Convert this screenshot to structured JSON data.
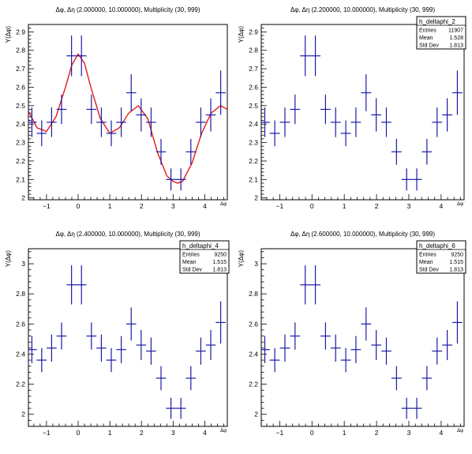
{
  "chart_data": [
    {
      "id": "p1",
      "type": "scatter",
      "title": "Δφ, Δη (2.000000, 10.000000), Multiplicity (30, 999)",
      "xlabel": "Δφ",
      "ylabel": "Y(Δφ)",
      "xlim": [
        -1.571,
        4.712
      ],
      "ylim": [
        1.99,
        2.94
      ],
      "xticks": [
        -1,
        0,
        1,
        2,
        3,
        4
      ],
      "yticks": [
        2,
        2.1,
        2.2,
        2.3,
        2.4,
        2.5,
        2.6,
        2.7,
        2.8,
        2.9
      ],
      "series": [
        {
          "x": [
            -1.461,
            -1.152,
            -0.838,
            -0.524,
            -0.209,
            0.105,
            0.419,
            0.733,
            1.047,
            1.361,
            1.676,
            1.99,
            2.304,
            2.618,
            2.932,
            3.246,
            3.56,
            3.875,
            4.189,
            4.503
          ],
          "y": [
            2.41,
            2.35,
            2.41,
            2.48,
            2.77,
            2.77,
            2.48,
            2.41,
            2.35,
            2.41,
            2.57,
            2.45,
            2.41,
            2.25,
            2.1,
            2.1,
            2.25,
            2.41,
            2.45,
            2.57
          ],
          "yerr": [
            0.08,
            0.07,
            0.08,
            0.08,
            0.11,
            0.11,
            0.08,
            0.08,
            0.07,
            0.08,
            0.1,
            0.09,
            0.08,
            0.07,
            0.06,
            0.06,
            0.07,
            0.08,
            0.09,
            0.12
          ],
          "xerr": 0.157,
          "color": "#1a1aa8"
        }
      ],
      "fit": {
        "color": "#e11b1b",
        "x": [
          -1.571,
          -1.3,
          -1.0,
          -0.7,
          -0.4,
          -0.2,
          0.0,
          0.2,
          0.4,
          0.7,
          1.0,
          1.3,
          1.6,
          1.9,
          2.2,
          2.5,
          2.8,
          3.0,
          3.14,
          3.3,
          3.6,
          3.9,
          4.2,
          4.5,
          4.712
        ],
        "y": [
          2.47,
          2.38,
          2.36,
          2.44,
          2.6,
          2.72,
          2.78,
          2.73,
          2.6,
          2.43,
          2.35,
          2.38,
          2.46,
          2.5,
          2.43,
          2.25,
          2.12,
          2.09,
          2.08,
          2.09,
          2.19,
          2.35,
          2.46,
          2.5,
          2.48
        ]
      },
      "stats": null
    },
    {
      "id": "p2",
      "type": "scatter",
      "title": "Δφ, Δη (2.200000, 10.000000), Multiplicity (30, 999)",
      "xlabel": "Δφ",
      "ylabel": "Y(Δφ)",
      "xlim": [
        -1.571,
        4.712
      ],
      "ylim": [
        1.99,
        2.94
      ],
      "xticks": [
        -1,
        0,
        1,
        2,
        3,
        4
      ],
      "yticks": [
        2,
        2.1,
        2.2,
        2.3,
        2.4,
        2.5,
        2.6,
        2.7,
        2.8,
        2.9
      ],
      "series": [
        {
          "x": [
            -1.461,
            -1.152,
            -0.838,
            -0.524,
            -0.209,
            0.105,
            0.419,
            0.733,
            1.047,
            1.361,
            1.676,
            1.99,
            2.304,
            2.618,
            2.932,
            3.246,
            3.56,
            3.875,
            4.189,
            4.503
          ],
          "y": [
            2.41,
            2.35,
            2.41,
            2.48,
            2.77,
            2.77,
            2.48,
            2.41,
            2.35,
            2.41,
            2.57,
            2.45,
            2.41,
            2.25,
            2.1,
            2.1,
            2.25,
            2.41,
            2.45,
            2.57
          ],
          "yerr": [
            0.08,
            0.07,
            0.08,
            0.08,
            0.11,
            0.11,
            0.08,
            0.08,
            0.07,
            0.08,
            0.1,
            0.09,
            0.08,
            0.07,
            0.06,
            0.06,
            0.07,
            0.08,
            0.09,
            0.12
          ],
          "xerr": 0.157,
          "color": "#1a1aa8"
        }
      ],
      "fit": null,
      "stats": {
        "name": "h_deltaphi_2",
        "entries_label": "Entries",
        "entries": "11907",
        "mean_label": "Mean",
        "mean": "1.528",
        "std_label": "Std Dev",
        "std": "1.813"
      }
    },
    {
      "id": "p3",
      "type": "scatter",
      "title": "Δφ, Δη (2.400000, 10.000000), Multiplicity (30, 999)",
      "xlabel": "Δφ",
      "ylabel": "Y(Δφ)",
      "xlim": [
        -1.571,
        4.712
      ],
      "ylim": [
        1.92,
        3.1
      ],
      "xticks": [
        -1,
        0,
        1,
        2,
        3,
        4
      ],
      "yticks": [
        2,
        2.2,
        2.4,
        2.6,
        2.8,
        3
      ],
      "series": [
        {
          "x": [
            -1.461,
            -1.152,
            -0.838,
            -0.524,
            -0.209,
            0.105,
            0.419,
            0.733,
            1.047,
            1.361,
            1.676,
            1.99,
            2.304,
            2.618,
            2.932,
            3.246,
            3.56,
            3.875,
            4.189,
            4.503
          ],
          "y": [
            2.43,
            2.36,
            2.44,
            2.52,
            2.86,
            2.86,
            2.52,
            2.44,
            2.36,
            2.43,
            2.6,
            2.46,
            2.42,
            2.24,
            2.04,
            2.04,
            2.24,
            2.42,
            2.46,
            2.61
          ],
          "yerr": [
            0.09,
            0.08,
            0.09,
            0.09,
            0.13,
            0.13,
            0.09,
            0.09,
            0.08,
            0.09,
            0.11,
            0.1,
            0.09,
            0.08,
            0.07,
            0.07,
            0.08,
            0.09,
            0.1,
            0.14
          ],
          "xerr": 0.157,
          "color": "#1a1aa8"
        }
      ],
      "fit": null,
      "stats": {
        "name": "h_deltaphi_4",
        "entries_label": "Entries",
        "entries": "9250",
        "mean_label": "Mean",
        "mean": "1.515",
        "std_label": "Std Dev",
        "std": "1.813"
      }
    },
    {
      "id": "p4",
      "type": "scatter",
      "title": "Δφ, Δη (2.600000, 10.000000), Multiplicity (30, 999)",
      "xlabel": "Δφ",
      "ylabel": "Y(Δφ)",
      "xlim": [
        -1.571,
        4.712
      ],
      "ylim": [
        1.92,
        3.1
      ],
      "xticks": [
        -1,
        0,
        1,
        2,
        3,
        4
      ],
      "yticks": [
        2,
        2.2,
        2.4,
        2.6,
        2.8,
        3
      ],
      "series": [
        {
          "x": [
            -1.461,
            -1.152,
            -0.838,
            -0.524,
            -0.209,
            0.105,
            0.419,
            0.733,
            1.047,
            1.361,
            1.676,
            1.99,
            2.304,
            2.618,
            2.932,
            3.246,
            3.56,
            3.875,
            4.189,
            4.503
          ],
          "y": [
            2.43,
            2.36,
            2.44,
            2.52,
            2.86,
            2.86,
            2.52,
            2.44,
            2.36,
            2.43,
            2.6,
            2.46,
            2.42,
            2.24,
            2.04,
            2.04,
            2.24,
            2.42,
            2.46,
            2.61
          ],
          "yerr": [
            0.09,
            0.08,
            0.09,
            0.09,
            0.13,
            0.13,
            0.09,
            0.09,
            0.08,
            0.09,
            0.11,
            0.1,
            0.09,
            0.08,
            0.07,
            0.07,
            0.08,
            0.09,
            0.1,
            0.14
          ],
          "xerr": 0.157,
          "color": "#1a1aa8"
        }
      ],
      "fit": null,
      "stats": {
        "name": "h_deltaphi_6",
        "entries_label": "Entries",
        "entries": "9250",
        "mean_label": "Mean",
        "mean": "1.515",
        "std_label": "Std Dev",
        "std": "1.813"
      }
    }
  ]
}
